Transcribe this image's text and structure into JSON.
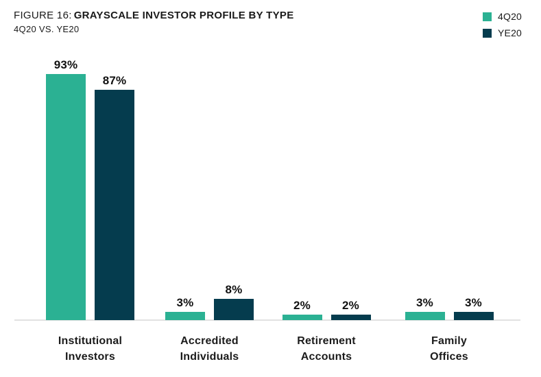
{
  "header": {
    "figure_label": "FIGURE 16:",
    "title": "GRAYSCALE INVESTOR PROFILE BY TYPE",
    "subtitle": "4Q20 VS. YE20"
  },
  "chart_data": {
    "type": "bar",
    "title": "FIGURE 16: GRAYSCALE INVESTOR PROFILE BY TYPE",
    "subtitle": "4Q20 VS. YE20",
    "categories": [
      "Institutional Investors",
      "Accredited Individuals",
      "Retirement Accounts",
      "Family Offices"
    ],
    "series": [
      {
        "name": "4Q20",
        "color": "#2BB193",
        "values": [
          93,
          3,
          2,
          3
        ],
        "labels": [
          "93%",
          "3%",
          "2%",
          "3%"
        ]
      },
      {
        "name": "YE20",
        "color": "#053C4E",
        "values": [
          87,
          8,
          2,
          3
        ],
        "labels": [
          "87%",
          "8%",
          "2%",
          "3%"
        ]
      }
    ],
    "xlabel": "",
    "ylabel": "",
    "ylim": [
      0,
      100
    ],
    "grid": false,
    "y_axis_visible": false,
    "legend_position": "top-right",
    "value_suffix": "%"
  },
  "colors": {
    "series_4q20": "#2BB193",
    "series_ye20": "#053C4E",
    "axis_line": "#E1E1E1",
    "text": "#1A1A1A"
  }
}
